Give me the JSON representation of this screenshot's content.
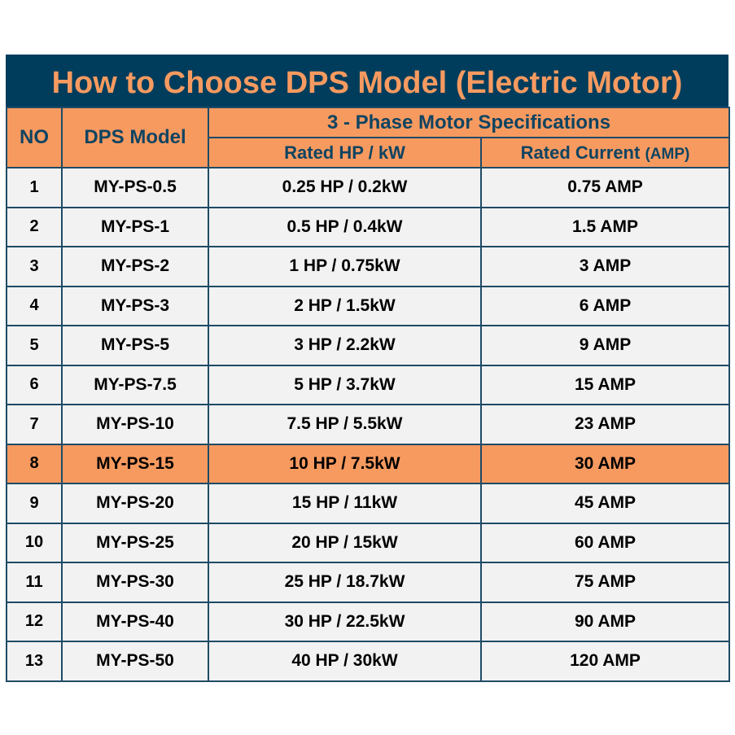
{
  "title": "How to Choose DPS Model (Electric Motor)",
  "headers": {
    "no": "NO",
    "model": "DPS Model",
    "group": "3 - Phase Motor Specifications",
    "hp": "Rated HP / kW",
    "current": "Rated Current",
    "current_unit": "(AMP)"
  },
  "colors": {
    "header_bg": "#003d5c",
    "accent": "#f79a60",
    "row_bg": "#f2f2f2"
  },
  "highlighted_row": 8,
  "rows": [
    {
      "no": "1",
      "model": "MY-PS-0.5",
      "hp": "0.25 HP / 0.2kW",
      "current": "0.75 AMP"
    },
    {
      "no": "2",
      "model": "MY-PS-1",
      "hp": "0.5 HP / 0.4kW",
      "current": "1.5 AMP"
    },
    {
      "no": "3",
      "model": "MY-PS-2",
      "hp": "1 HP / 0.75kW",
      "current": "3 AMP"
    },
    {
      "no": "4",
      "model": "MY-PS-3",
      "hp": "2 HP / 1.5kW",
      "current": "6 AMP"
    },
    {
      "no": "5",
      "model": "MY-PS-5",
      "hp": "3 HP / 2.2kW",
      "current": "9 AMP"
    },
    {
      "no": "6",
      "model": "MY-PS-7.5",
      "hp": "5 HP / 3.7kW",
      "current": "15 AMP"
    },
    {
      "no": "7",
      "model": "MY-PS-10",
      "hp": "7.5 HP / 5.5kW",
      "current": "23 AMP"
    },
    {
      "no": "8",
      "model": "MY-PS-15",
      "hp": "10 HP / 7.5kW",
      "current": "30 AMP"
    },
    {
      "no": "9",
      "model": "MY-PS-20",
      "hp": "15 HP / 11kW",
      "current": "45 AMP"
    },
    {
      "no": "10",
      "model": "MY-PS-25",
      "hp": "20 HP / 15kW",
      "current": "60 AMP"
    },
    {
      "no": "11",
      "model": "MY-PS-30",
      "hp": "25 HP / 18.7kW",
      "current": "75 AMP"
    },
    {
      "no": "12",
      "model": "MY-PS-40",
      "hp": "30 HP / 22.5kW",
      "current": "90 AMP"
    },
    {
      "no": "13",
      "model": "MY-PS-50",
      "hp": "40 HP / 30kW",
      "current": "120 AMP"
    }
  ]
}
